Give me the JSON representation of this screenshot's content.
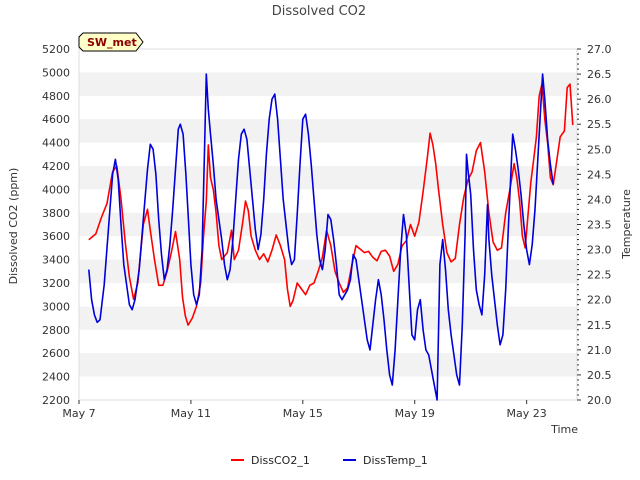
{
  "chart_data": {
    "type": "line",
    "title": "Dissolved CO2",
    "site_tag": "SW_met",
    "xlabel": "Time",
    "ylabel": "Dissolved CO2 (ppm)",
    "y2label": "Temperature",
    "x_unit": "days since May 7",
    "xlim": [
      0,
      17.8
    ],
    "ylim": [
      2200,
      5200
    ],
    "y2lim": [
      20.0,
      27.0
    ],
    "x_ticks": [
      {
        "value": 0,
        "label": "May 7"
      },
      {
        "value": 4,
        "label": "May 11"
      },
      {
        "value": 8,
        "label": "May 15"
      },
      {
        "value": 12,
        "label": "May 19"
      },
      {
        "value": 16,
        "label": "May 23"
      }
    ],
    "y_ticks": [
      "2200",
      "2400",
      "2600",
      "2800",
      "3000",
      "3200",
      "3400",
      "3600",
      "3800",
      "4000",
      "4200",
      "4400",
      "4600",
      "4800",
      "5000",
      "5200"
    ],
    "y2_ticks": [
      "20.0",
      "20.5",
      "21.0",
      "21.5",
      "22.0",
      "22.5",
      "23.0",
      "23.5",
      "24.0",
      "24.5",
      "25.0",
      "25.5",
      "26.0",
      "26.5",
      "27.0"
    ],
    "legend": {
      "position": "bottom-center",
      "items": [
        "DissCO2_1",
        "DissTemp_1"
      ]
    },
    "series": [
      {
        "name": "DissCO2_1",
        "axis": "left",
        "color": "#ff0000",
        "points": [
          [
            0.35,
            3570
          ],
          [
            0.6,
            3620
          ],
          [
            0.8,
            3760
          ],
          [
            1.0,
            3880
          ],
          [
            1.2,
            4150
          ],
          [
            1.35,
            4200
          ],
          [
            1.5,
            3920
          ],
          [
            1.65,
            3550
          ],
          [
            1.8,
            3250
          ],
          [
            1.95,
            3060
          ],
          [
            2.1,
            3200
          ],
          [
            2.3,
            3700
          ],
          [
            2.45,
            3830
          ],
          [
            2.55,
            3650
          ],
          [
            2.7,
            3400
          ],
          [
            2.85,
            3180
          ],
          [
            3.0,
            3180
          ],
          [
            3.15,
            3300
          ],
          [
            3.3,
            3460
          ],
          [
            3.45,
            3640
          ],
          [
            3.6,
            3400
          ],
          [
            3.7,
            3080
          ],
          [
            3.8,
            2920
          ],
          [
            3.9,
            2840
          ],
          [
            4.05,
            2900
          ],
          [
            4.2,
            3000
          ],
          [
            4.35,
            3200
          ],
          [
            4.45,
            3600
          ],
          [
            4.55,
            3900
          ],
          [
            4.62,
            4380
          ],
          [
            4.7,
            4100
          ],
          [
            4.8,
            4000
          ],
          [
            4.9,
            3800
          ],
          [
            5.0,
            3520
          ],
          [
            5.1,
            3400
          ],
          [
            5.3,
            3460
          ],
          [
            5.45,
            3650
          ],
          [
            5.55,
            3400
          ],
          [
            5.7,
            3480
          ],
          [
            5.85,
            3720
          ],
          [
            5.95,
            3900
          ],
          [
            6.05,
            3820
          ],
          [
            6.15,
            3600
          ],
          [
            6.3,
            3480
          ],
          [
            6.45,
            3400
          ],
          [
            6.6,
            3450
          ],
          [
            6.75,
            3380
          ],
          [
            6.9,
            3480
          ],
          [
            7.05,
            3610
          ],
          [
            7.2,
            3520
          ],
          [
            7.35,
            3400
          ],
          [
            7.45,
            3150
          ],
          [
            7.55,
            3000
          ],
          [
            7.65,
            3050
          ],
          [
            7.8,
            3200
          ],
          [
            7.95,
            3150
          ],
          [
            8.1,
            3100
          ],
          [
            8.25,
            3180
          ],
          [
            8.4,
            3200
          ],
          [
            8.55,
            3300
          ],
          [
            8.7,
            3420
          ],
          [
            8.85,
            3650
          ],
          [
            9.0,
            3520
          ],
          [
            9.15,
            3300
          ],
          [
            9.3,
            3200
          ],
          [
            9.45,
            3120
          ],
          [
            9.6,
            3160
          ],
          [
            9.75,
            3350
          ],
          [
            9.9,
            3520
          ],
          [
            10.05,
            3490
          ],
          [
            10.2,
            3460
          ],
          [
            10.35,
            3470
          ],
          [
            10.5,
            3420
          ],
          [
            10.65,
            3390
          ],
          [
            10.8,
            3470
          ],
          [
            10.95,
            3480
          ],
          [
            11.1,
            3430
          ],
          [
            11.25,
            3300
          ],
          [
            11.4,
            3360
          ],
          [
            11.55,
            3520
          ],
          [
            11.7,
            3560
          ],
          [
            11.85,
            3700
          ],
          [
            12.0,
            3600
          ],
          [
            12.15,
            3720
          ],
          [
            12.3,
            3980
          ],
          [
            12.45,
            4270
          ],
          [
            12.55,
            4480
          ],
          [
            12.65,
            4380
          ],
          [
            12.75,
            4220
          ],
          [
            12.85,
            4000
          ],
          [
            13.0,
            3700
          ],
          [
            13.15,
            3460
          ],
          [
            13.3,
            3380
          ],
          [
            13.45,
            3410
          ],
          [
            13.6,
            3700
          ],
          [
            13.75,
            3930
          ],
          [
            13.9,
            4080
          ],
          [
            14.05,
            4150
          ],
          [
            14.2,
            4330
          ],
          [
            14.35,
            4400
          ],
          [
            14.5,
            4150
          ],
          [
            14.65,
            3800
          ],
          [
            14.8,
            3550
          ],
          [
            14.95,
            3480
          ],
          [
            15.1,
            3500
          ],
          [
            15.25,
            3800
          ],
          [
            15.4,
            4000
          ],
          [
            15.55,
            4220
          ],
          [
            15.65,
            4100
          ],
          [
            15.75,
            3900
          ],
          [
            15.85,
            3600
          ],
          [
            15.95,
            3500
          ],
          [
            16.05,
            3780
          ],
          [
            16.15,
            4060
          ],
          [
            16.25,
            4250
          ],
          [
            16.35,
            4450
          ],
          [
            16.45,
            4800
          ],
          [
            16.55,
            4900
          ],
          [
            16.65,
            4600
          ],
          [
            16.75,
            4400
          ],
          [
            16.85,
            4100
          ],
          [
            16.95,
            4040
          ],
          [
            17.05,
            4200
          ],
          [
            17.2,
            4450
          ],
          [
            17.35,
            4500
          ],
          [
            17.45,
            4870
          ],
          [
            17.55,
            4900
          ],
          [
            17.65,
            4550
          ]
        ]
      },
      {
        "name": "DissTemp_1",
        "axis": "right",
        "color": "#0000dd",
        "points": [
          [
            0.35,
            22.6
          ],
          [
            0.45,
            22.0
          ],
          [
            0.55,
            21.7
          ],
          [
            0.65,
            21.55
          ],
          [
            0.75,
            21.6
          ],
          [
            0.9,
            22.3
          ],
          [
            1.05,
            23.4
          ],
          [
            1.2,
            24.5
          ],
          [
            1.3,
            24.8
          ],
          [
            1.4,
            24.4
          ],
          [
            1.5,
            23.5
          ],
          [
            1.6,
            22.7
          ],
          [
            1.7,
            22.3
          ],
          [
            1.8,
            21.9
          ],
          [
            1.9,
            21.8
          ],
          [
            2.0,
            22.0
          ],
          [
            2.15,
            22.6
          ],
          [
            2.3,
            23.6
          ],
          [
            2.45,
            24.6
          ],
          [
            2.55,
            25.1
          ],
          [
            2.65,
            25.0
          ],
          [
            2.75,
            24.5
          ],
          [
            2.85,
            23.6
          ],
          [
            2.95,
            22.9
          ],
          [
            3.05,
            22.4
          ],
          [
            3.15,
            22.6
          ],
          [
            3.25,
            23.1
          ],
          [
            3.35,
            23.8
          ],
          [
            3.45,
            24.6
          ],
          [
            3.55,
            25.4
          ],
          [
            3.62,
            25.5
          ],
          [
            3.72,
            25.3
          ],
          [
            3.82,
            24.5
          ],
          [
            3.92,
            23.5
          ],
          [
            4.0,
            22.7
          ],
          [
            4.1,
            22.1
          ],
          [
            4.2,
            21.9
          ],
          [
            4.3,
            22.1
          ],
          [
            4.4,
            23.0
          ],
          [
            4.48,
            24.8
          ],
          [
            4.55,
            26.5
          ],
          [
            4.62,
            25.8
          ],
          [
            4.7,
            25.3
          ],
          [
            4.8,
            24.7
          ],
          [
            4.9,
            24.0
          ],
          [
            5.0,
            23.6
          ],
          [
            5.1,
            23.2
          ],
          [
            5.2,
            22.7
          ],
          [
            5.3,
            22.4
          ],
          [
            5.4,
            22.6
          ],
          [
            5.5,
            23.2
          ],
          [
            5.6,
            24.0
          ],
          [
            5.7,
            24.8
          ],
          [
            5.8,
            25.3
          ],
          [
            5.9,
            25.4
          ],
          [
            6.0,
            25.2
          ],
          [
            6.1,
            24.6
          ],
          [
            6.2,
            24.0
          ],
          [
            6.3,
            23.4
          ],
          [
            6.4,
            23.0
          ],
          [
            6.5,
            23.3
          ],
          [
            6.6,
            24.0
          ],
          [
            6.7,
            24.9
          ],
          [
            6.8,
            25.6
          ],
          [
            6.9,
            26.0
          ],
          [
            7.0,
            26.1
          ],
          [
            7.1,
            25.6
          ],
          [
            7.2,
            24.8
          ],
          [
            7.3,
            24.0
          ],
          [
            7.4,
            23.5
          ],
          [
            7.5,
            23.0
          ],
          [
            7.6,
            22.7
          ],
          [
            7.7,
            22.8
          ],
          [
            7.8,
            23.7
          ],
          [
            7.9,
            24.7
          ],
          [
            8.0,
            25.6
          ],
          [
            8.1,
            25.7
          ],
          [
            8.2,
            25.3
          ],
          [
            8.3,
            24.7
          ],
          [
            8.4,
            24.0
          ],
          [
            8.5,
            23.3
          ],
          [
            8.6,
            22.8
          ],
          [
            8.7,
            22.6
          ],
          [
            8.8,
            23.0
          ],
          [
            8.9,
            23.7
          ],
          [
            9.0,
            23.6
          ],
          [
            9.1,
            23.2
          ],
          [
            9.2,
            22.7
          ],
          [
            9.3,
            22.1
          ],
          [
            9.4,
            22.0
          ],
          [
            9.5,
            22.1
          ],
          [
            9.6,
            22.2
          ],
          [
            9.7,
            22.4
          ],
          [
            9.8,
            22.9
          ],
          [
            9.9,
            22.8
          ],
          [
            10.0,
            22.4
          ],
          [
            10.1,
            22.0
          ],
          [
            10.2,
            21.6
          ],
          [
            10.3,
            21.2
          ],
          [
            10.4,
            21.0
          ],
          [
            10.5,
            21.5
          ],
          [
            10.6,
            22.0
          ],
          [
            10.7,
            22.4
          ],
          [
            10.8,
            22.1
          ],
          [
            10.9,
            21.6
          ],
          [
            11.0,
            21.0
          ],
          [
            11.1,
            20.5
          ],
          [
            11.2,
            20.3
          ],
          [
            11.3,
            21.0
          ],
          [
            11.4,
            22.0
          ],
          [
            11.5,
            23.0
          ],
          [
            11.6,
            23.7
          ],
          [
            11.7,
            23.3
          ],
          [
            11.8,
            22.3
          ],
          [
            11.9,
            21.3
          ],
          [
            12.0,
            21.2
          ],
          [
            12.1,
            21.8
          ],
          [
            12.2,
            22.0
          ],
          [
            12.3,
            21.4
          ],
          [
            12.4,
            21.0
          ],
          [
            12.5,
            20.9
          ],
          [
            12.6,
            20.6
          ],
          [
            12.7,
            20.3
          ],
          [
            12.8,
            20.0
          ],
          [
            12.9,
            22.7
          ],
          [
            13.0,
            23.2
          ],
          [
            13.1,
            22.6
          ],
          [
            13.2,
            21.8
          ],
          [
            13.3,
            21.3
          ],
          [
            13.4,
            20.9
          ],
          [
            13.5,
            20.5
          ],
          [
            13.6,
            20.3
          ],
          [
            13.7,
            21.5
          ],
          [
            13.8,
            23.3
          ],
          [
            13.85,
            24.9
          ],
          [
            13.9,
            24.6
          ],
          [
            14.0,
            24.1
          ],
          [
            14.1,
            23.0
          ],
          [
            14.2,
            22.2
          ],
          [
            14.3,
            21.9
          ],
          [
            14.4,
            21.7
          ],
          [
            14.5,
            22.5
          ],
          [
            14.6,
            23.9
          ],
          [
            14.65,
            23.2
          ],
          [
            14.75,
            22.5
          ],
          [
            14.85,
            22.0
          ],
          [
            14.95,
            21.5
          ],
          [
            15.05,
            21.1
          ],
          [
            15.15,
            21.3
          ],
          [
            15.25,
            22.2
          ],
          [
            15.35,
            23.5
          ],
          [
            15.45,
            24.7
          ],
          [
            15.5,
            25.3
          ],
          [
            15.6,
            25.0
          ],
          [
            15.7,
            24.6
          ],
          [
            15.8,
            24.1
          ],
          [
            15.9,
            23.5
          ],
          [
            16.0,
            23.0
          ],
          [
            16.1,
            22.7
          ],
          [
            16.2,
            23.1
          ],
          [
            16.3,
            23.8
          ],
          [
            16.4,
            24.8
          ],
          [
            16.5,
            25.8
          ],
          [
            16.57,
            26.5
          ],
          [
            16.65,
            26.0
          ],
          [
            16.75,
            25.2
          ],
          [
            16.85,
            24.7
          ],
          [
            16.95,
            24.3
          ]
        ]
      }
    ]
  }
}
